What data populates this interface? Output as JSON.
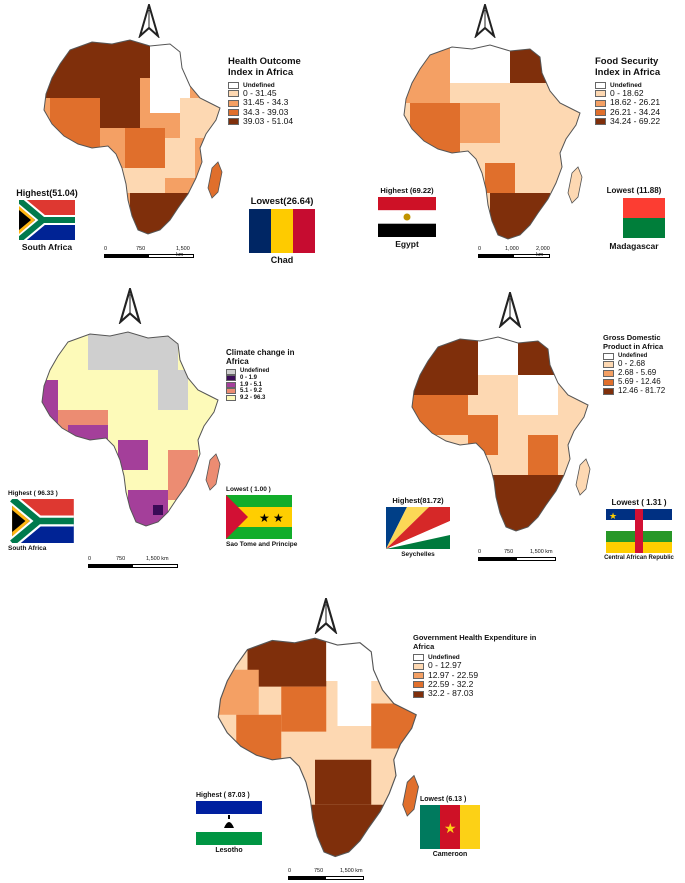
{
  "colors": {
    "undefined": "#ffffff",
    "orange_1": "#fdd8b2",
    "orange_2": "#f4a064",
    "orange_3": "#e06f2c",
    "orange_4": "#7f2f0b",
    "climate_1": "#3b0b57",
    "climate_2": "#a43f9a",
    "climate_3": "#ec8c72",
    "climate_4": "#fdfab9",
    "climate_na": "#cfcfcf"
  },
  "panels": {
    "health": {
      "legend_title": "Health Outcome Index in Africa",
      "classes": [
        "Undefined",
        "0 - 31.45",
        "31.45 - 34.3",
        "34.3 - 39.03",
        "39.03 - 51.04"
      ],
      "highest_label": "Highest(51.04)",
      "highest_country": "South Africa",
      "lowest_label": "Lowest(26.64)",
      "lowest_country": "Chad",
      "scale": [
        "0",
        "750",
        "1,500 km"
      ]
    },
    "food": {
      "legend_title": "Food Security Index in Africa",
      "classes": [
        "Undefined",
        "0 - 18.62",
        "18.62 - 26.21",
        "26.21 - 34.24",
        "34.24 - 69.22"
      ],
      "highest_label": "Highest (69.22)",
      "highest_country": "Egypt",
      "lowest_label": "Lowest (11.88)",
      "lowest_country": "Madagascar",
      "scale": [
        "0",
        "1,000",
        "2,000 km"
      ]
    },
    "climate": {
      "legend_title": "Climate change in Africa",
      "classes": [
        "Undefined",
        "0 - 1.9",
        "1.9 - 5.1",
        "5.1 - 9.2",
        "9.2 - 96.3"
      ],
      "highest_label": "Highest ( 96.33 )",
      "highest_country": "South Africa",
      "lowest_label": "Lowest ( 1.00 )",
      "lowest_country": "Sao Tome and Principe",
      "scale": [
        "0",
        "750",
        "1,500 km"
      ]
    },
    "gdp": {
      "legend_title": "Gross Domestic Product in Africa",
      "classes": [
        "Undefined",
        "0 - 2.68",
        "2.68 - 5.69",
        "5.69 - 12.46",
        "12.46 - 81.72"
      ],
      "highest_label": "Highest(81.72)",
      "highest_country": "Seychelles",
      "lowest_label": "Lowest ( 1.31 )",
      "lowest_country": "Central African Republic",
      "scale": [
        "0",
        "750",
        "1,500 km"
      ]
    },
    "gov": {
      "legend_title": "Government Health Expenditure in Africa",
      "classes": [
        "Undefined",
        "0 - 12.97",
        "12.97 - 22.59",
        "22.59 - 32.2",
        "32.2 - 87.03"
      ],
      "highest_label": "Highest ( 87.03 )",
      "highest_country": "Lesotho",
      "lowest_label": "Lowest (6.13 )",
      "lowest_country": "Cameroon",
      "scale": [
        "0",
        "750",
        "1,500 km"
      ]
    }
  }
}
